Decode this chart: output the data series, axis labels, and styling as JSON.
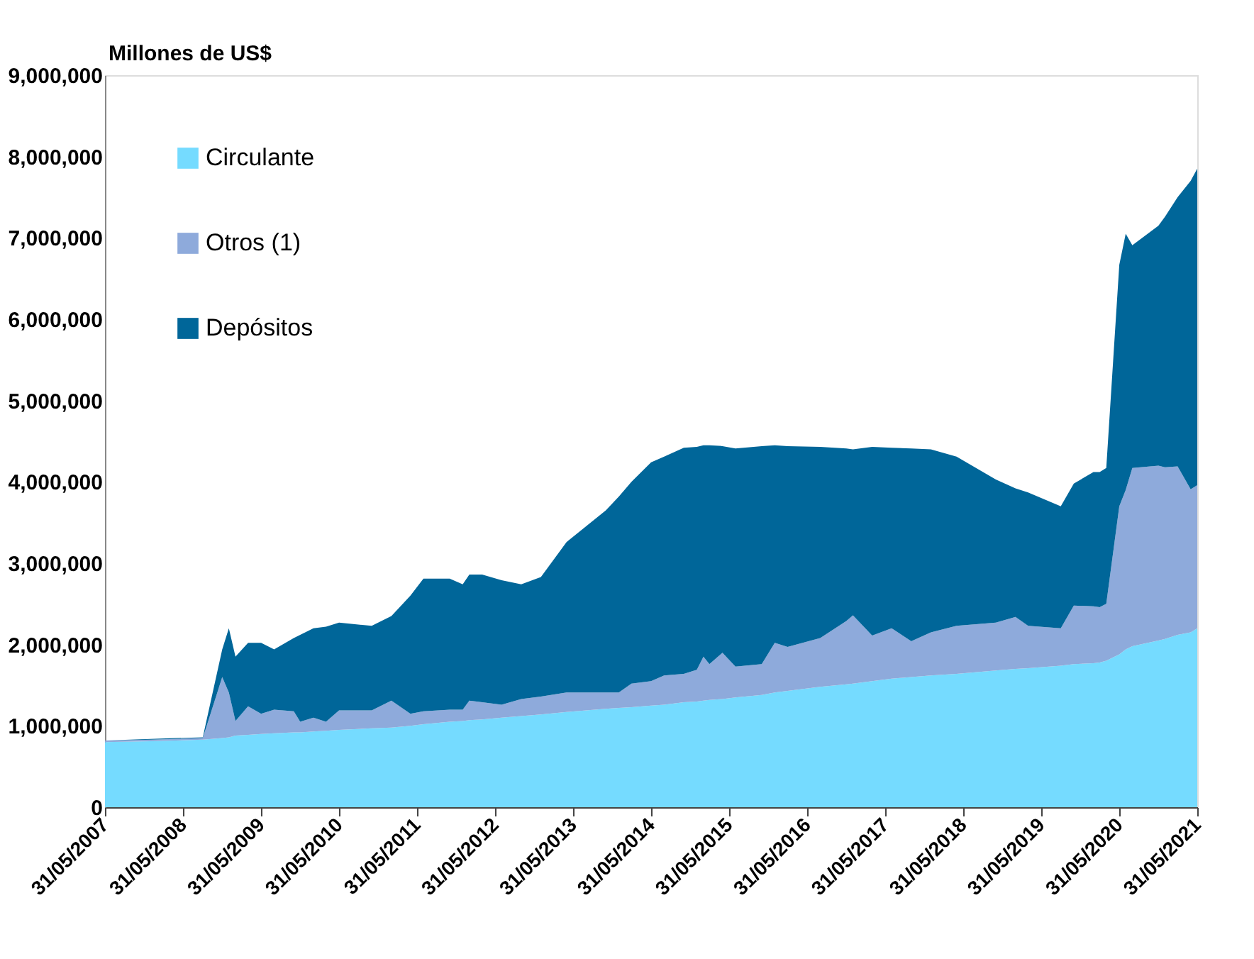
{
  "chart_data": {
    "type": "area",
    "stacked": true,
    "ylabel": "Millones de US$",
    "x": [
      "2007-05-31",
      "2007-12-31",
      "2008-08-31",
      "2008-11-30",
      "2008-12-31",
      "2009-01-31",
      "2009-03-31",
      "2009-05-31",
      "2009-07-31",
      "2009-10-31",
      "2009-11-30",
      "2010-01-31",
      "2010-03-31",
      "2010-05-31",
      "2010-10-31",
      "2011-01-31",
      "2011-04-30",
      "2011-06-30",
      "2011-10-31",
      "2011-12-31",
      "2012-01-31",
      "2012-03-31",
      "2012-06-30",
      "2012-09-30",
      "2012-12-31",
      "2013-04-30",
      "2013-10-31",
      "2013-12-31",
      "2014-02-28",
      "2014-05-31",
      "2014-07-31",
      "2014-10-31",
      "2014-12-31",
      "2015-01-31",
      "2015-02-28",
      "2015-04-30",
      "2015-06-30",
      "2015-10-31",
      "2015-12-31",
      "2016-02-29",
      "2016-07-31",
      "2016-11-30",
      "2016-12-31",
      "2017-03-31",
      "2017-06-30",
      "2017-09-30",
      "2017-12-31",
      "2018-04-30",
      "2018-10-31",
      "2019-01-31",
      "2019-03-31",
      "2019-08-31",
      "2019-10-31",
      "2020-01-31",
      "2020-02-29",
      "2020-03-31",
      "2020-05-31",
      "2020-06-30",
      "2020-07-31",
      "2020-11-30",
      "2020-12-31",
      "2021-02-28",
      "2021-04-30",
      "2021-05-31"
    ],
    "series": [
      {
        "name": "Circulante",
        "color": "#75dbff",
        "values": [
          800000,
          810000,
          830000,
          850000,
          860000,
          880000,
          890000,
          900000,
          910000,
          920000,
          920000,
          930000,
          940000,
          950000,
          970000,
          980000,
          1000000,
          1020000,
          1050000,
          1060000,
          1070000,
          1080000,
          1100000,
          1120000,
          1140000,
          1170000,
          1210000,
          1220000,
          1230000,
          1250000,
          1260000,
          1290000,
          1300000,
          1310000,
          1320000,
          1330000,
          1350000,
          1380000,
          1410000,
          1430000,
          1480000,
          1510000,
          1520000,
          1550000,
          1580000,
          1600000,
          1620000,
          1640000,
          1680000,
          1700000,
          1710000,
          1740000,
          1760000,
          1770000,
          1780000,
          1800000,
          1880000,
          1940000,
          1980000,
          2050000,
          2070000,
          2120000,
          2150000,
          2200000
        ]
      },
      {
        "name": "Otros (1)",
        "color": "#8eaadb",
        "values": [
          20000,
          20000,
          20000,
          750000,
          550000,
          180000,
          350000,
          250000,
          290000,
          260000,
          130000,
          170000,
          110000,
          240000,
          220000,
          330000,
          150000,
          160000,
          150000,
          140000,
          240000,
          210000,
          160000,
          210000,
          220000,
          240000,
          200000,
          190000,
          290000,
          300000,
          360000,
          350000,
          390000,
          540000,
          440000,
          570000,
          380000,
          380000,
          610000,
          540000,
          600000,
          780000,
          840000,
          560000,
          620000,
          440000,
          530000,
          590000,
          590000,
          640000,
          520000,
          460000,
          720000,
          700000,
          680000,
          700000,
          1820000,
          1960000,
          2190000,
          2150000,
          2110000,
          2070000,
          1760000,
          1760000
        ]
      },
      {
        "name": "Depósitos",
        "color": "#006699",
        "values": [
          0,
          10000,
          10000,
          340000,
          790000,
          790000,
          780000,
          870000,
          740000,
          900000,
          1070000,
          1100000,
          1170000,
          1080000,
          1040000,
          1040000,
          1450000,
          1630000,
          1610000,
          1540000,
          1550000,
          1570000,
          1530000,
          1410000,
          1470000,
          1850000,
          2240000,
          2410000,
          2480000,
          2690000,
          2690000,
          2780000,
          2740000,
          2600000,
          2690000,
          2540000,
          2680000,
          2680000,
          2430000,
          2470000,
          2350000,
          2120000,
          2040000,
          2320000,
          2220000,
          2370000,
          2250000,
          2080000,
          1760000,
          1580000,
          1640000,
          1500000,
          1500000,
          1650000,
          1660000,
          1670000,
          2970000,
          3150000,
          2740000,
          2950000,
          3080000,
          3310000,
          3790000,
          3890000
        ]
      }
    ],
    "xlim": [
      "2007-05-31",
      "2021-05-31"
    ],
    "xticks": [
      {
        "value": "2007-05-31",
        "label": "31/05/2007"
      },
      {
        "value": "2008-05-31",
        "label": "31/05/2008"
      },
      {
        "value": "2009-05-31",
        "label": "31/05/2009"
      },
      {
        "value": "2010-05-31",
        "label": "31/05/2010"
      },
      {
        "value": "2011-05-31",
        "label": "31/05/2011"
      },
      {
        "value": "2012-05-31",
        "label": "31/05/2012"
      },
      {
        "value": "2013-05-31",
        "label": "31/05/2013"
      },
      {
        "value": "2014-05-31",
        "label": "31/05/2014"
      },
      {
        "value": "2015-05-31",
        "label": "31/05/2015"
      },
      {
        "value": "2016-05-31",
        "label": "31/05/2016"
      },
      {
        "value": "2017-05-31",
        "label": "31/05/2017"
      },
      {
        "value": "2018-05-31",
        "label": "31/05/2018"
      },
      {
        "value": "2019-05-31",
        "label": "31/05/2019"
      },
      {
        "value": "2020-05-31",
        "label": "31/05/2020"
      },
      {
        "value": "2021-05-31",
        "label": "31/05/2021"
      }
    ],
    "ylim": [
      0,
      9000000
    ],
    "yticks": [
      {
        "value": 0,
        "label": "0"
      },
      {
        "value": 1000000,
        "label": "1,000,000"
      },
      {
        "value": 2000000,
        "label": "2,000,000"
      },
      {
        "value": 3000000,
        "label": "3,000,000"
      },
      {
        "value": 4000000,
        "label": "4,000,000"
      },
      {
        "value": 5000000,
        "label": "5,000,000"
      },
      {
        "value": 6000000,
        "label": "6,000,000"
      },
      {
        "value": 7000000,
        "label": "7,000,000"
      },
      {
        "value": 8000000,
        "label": "8,000,000"
      },
      {
        "value": 9000000,
        "label": "9,000,000"
      }
    ],
    "grid": false,
    "legend": "top left"
  }
}
